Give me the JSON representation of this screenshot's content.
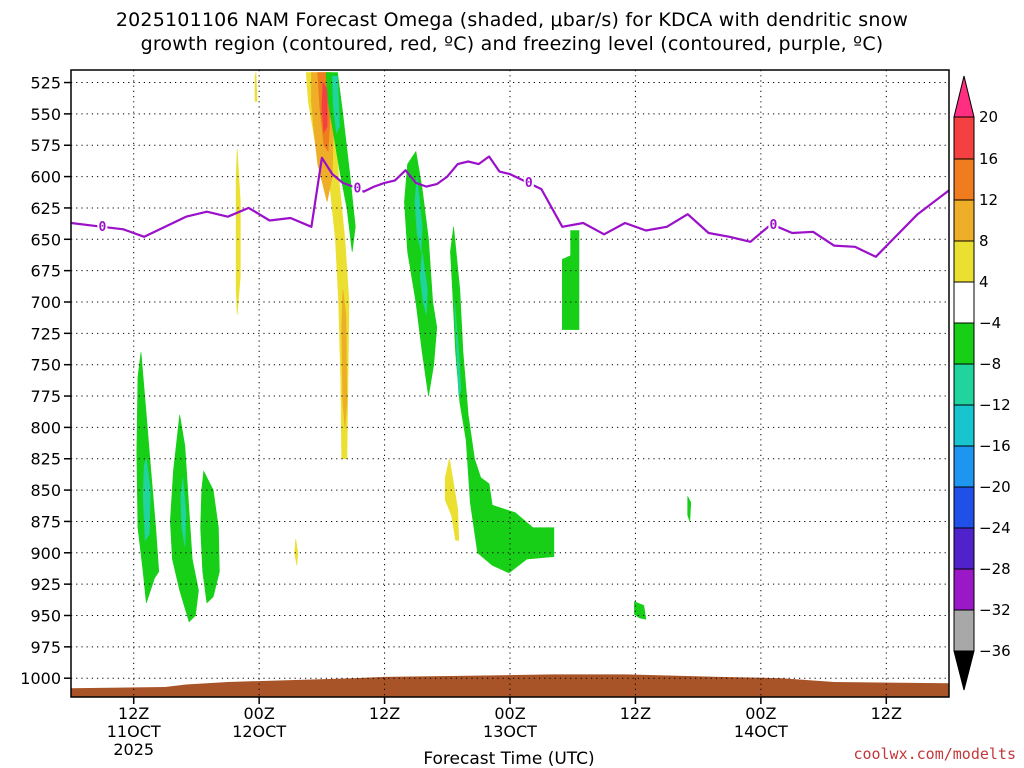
{
  "title": {
    "line1": "2025101106 NAM Forecast Omega (shaded, μbar/s) for KDCA with dendritic snow",
    "line2": "growth region (contoured, red, ºC) and freezing level (contoured, purple, ºC)"
  },
  "credit": "coolwx.com/modelts",
  "chart_data": {
    "type": "heatmap",
    "title": "2025101106 NAM Forecast Omega (shaded, μbar/s) for KDCA with dendritic snow growth region (contoured, red, ºC) and freezing level (contoured, purple, ºC)",
    "xlabel": "Forecast Time (UTC)",
    "ylabel": "",
    "x_unit": "forecast hour",
    "xlim": [
      0,
      84
    ],
    "x_ticks": [
      {
        "hour": 6,
        "lines": [
          "12Z",
          "11OCT",
          "2025"
        ]
      },
      {
        "hour": 18,
        "lines": [
          "00Z",
          "12OCT"
        ]
      },
      {
        "hour": 30,
        "lines": [
          "12Z"
        ]
      },
      {
        "hour": 42,
        "lines": [
          "00Z",
          "13OCT"
        ]
      },
      {
        "hour": 54,
        "lines": [
          "12Z"
        ]
      },
      {
        "hour": 66,
        "lines": [
          "00Z",
          "14OCT"
        ]
      },
      {
        "hour": 78,
        "lines": [
          "12Z"
        ]
      }
    ],
    "y_unit": "hPa",
    "ylim": [
      1015,
      515
    ],
    "y_ticks": [
      525,
      550,
      575,
      600,
      625,
      650,
      675,
      700,
      725,
      750,
      775,
      800,
      825,
      850,
      875,
      900,
      925,
      950,
      975,
      1000
    ],
    "grid": true,
    "colorbar": {
      "levels": [
        20,
        16,
        12,
        8,
        4,
        -4,
        -8,
        -12,
        -16,
        -20,
        -24,
        -28,
        -32,
        -36
      ],
      "colors": [
        "#ff2e80",
        "#f44040",
        "#ef7d20",
        "#eeae28",
        "#ebe032",
        "#ffffff",
        "#16cf16",
        "#21d39c",
        "#18c4cd",
        "#1e96f0",
        "#2050e8",
        "#5022cc",
        "#9a18c6",
        "#a8a8a8",
        "#000000"
      ],
      "placement": "right"
    },
    "shaded_regions": [
      {
        "class": "-8 to -4",
        "color": "#16cf16",
        "pts": [
          [
            6.7,
            740
          ],
          [
            7.2,
            790
          ],
          [
            7.6,
            830
          ],
          [
            8.1,
            880
          ],
          [
            8.4,
            915
          ],
          [
            8.0,
            920
          ],
          [
            7.2,
            940
          ],
          [
            6.9,
            915
          ],
          [
            6.4,
            880
          ],
          [
            6.3,
            820
          ],
          [
            6.4,
            760
          ]
        ]
      },
      {
        "class": "-12 to -8",
        "color": "#21d39c",
        "pts": [
          [
            7.2,
            825
          ],
          [
            7.6,
            850
          ],
          [
            7.5,
            885
          ],
          [
            7.1,
            890
          ],
          [
            6.9,
            855
          ],
          [
            7.0,
            830
          ]
        ]
      },
      {
        "class": "-8 to -4",
        "color": "#16cf16",
        "pts": [
          [
            10.4,
            790
          ],
          [
            10.9,
            815
          ],
          [
            11.2,
            855
          ],
          [
            11.6,
            905
          ],
          [
            12.2,
            930
          ],
          [
            11.9,
            950
          ],
          [
            11.3,
            955
          ],
          [
            10.4,
            930
          ],
          [
            9.7,
            905
          ],
          [
            9.5,
            875
          ],
          [
            9.8,
            835
          ]
        ]
      },
      {
        "class": "-12 to -8",
        "color": "#21d39c",
        "pts": [
          [
            10.7,
            840
          ],
          [
            11.0,
            870
          ],
          [
            10.9,
            895
          ],
          [
            10.6,
            880
          ],
          [
            10.5,
            855
          ]
        ]
      },
      {
        "class": "-8 to -4",
        "color": "#16cf16",
        "pts": [
          [
            12.7,
            835
          ],
          [
            13.6,
            850
          ],
          [
            14.1,
            880
          ],
          [
            14.2,
            915
          ],
          [
            13.6,
            935
          ],
          [
            13.0,
            940
          ],
          [
            12.6,
            915
          ],
          [
            12.4,
            880
          ],
          [
            12.5,
            850
          ]
        ]
      },
      {
        "class": "4 to 8",
        "color": "#ebe032",
        "pts": [
          [
            15.9,
            578
          ],
          [
            16.2,
            620
          ],
          [
            16.2,
            680
          ],
          [
            15.9,
            710
          ],
          [
            15.8,
            690
          ],
          [
            15.8,
            640
          ],
          [
            15.8,
            600
          ]
        ]
      },
      {
        "class": "4 to 8",
        "color": "#ebe032",
        "pts": [
          [
            17.7,
            517
          ],
          [
            17.8,
            540
          ],
          [
            17.6,
            540
          ],
          [
            17.6,
            520
          ]
        ]
      },
      {
        "class": "4 to 8",
        "color": "#ebe032",
        "pts": [
          [
            21.5,
            889
          ],
          [
            21.7,
            900
          ],
          [
            21.6,
            910
          ],
          [
            21.4,
            900
          ]
        ]
      },
      {
        "class": "4 to 8",
        "color": "#ebe032",
        "pts": [
          [
            22.5,
            517
          ],
          [
            25.0,
            517
          ],
          [
            25.3,
            560
          ],
          [
            25.6,
            600
          ],
          [
            26.2,
            650
          ],
          [
            26.6,
            700
          ],
          [
            26.5,
            760
          ],
          [
            26.4,
            825
          ],
          [
            25.9,
            825
          ],
          [
            25.8,
            760
          ],
          [
            25.6,
            700
          ],
          [
            25.3,
            650
          ],
          [
            24.8,
            610
          ],
          [
            23.7,
            590
          ],
          [
            23.1,
            560
          ],
          [
            22.7,
            540
          ]
        ]
      },
      {
        "class": "8 to 12",
        "color": "#eeae28",
        "pts": [
          [
            23.0,
            517
          ],
          [
            24.9,
            517
          ],
          [
            25.1,
            560
          ],
          [
            25.0,
            600
          ],
          [
            24.5,
            620
          ],
          [
            23.6,
            590
          ],
          [
            23.2,
            560
          ],
          [
            23.0,
            540
          ]
        ]
      },
      {
        "class": "8 to 12",
        "color": "#eeae28",
        "pts": [
          [
            26.0,
            690
          ],
          [
            26.3,
            710
          ],
          [
            26.4,
            780
          ],
          [
            26.2,
            800
          ],
          [
            26.0,
            780
          ],
          [
            25.9,
            720
          ]
        ]
      },
      {
        "class": "12 to 16",
        "color": "#ef7d20",
        "pts": [
          [
            23.6,
            517
          ],
          [
            24.7,
            517
          ],
          [
            24.8,
            550
          ],
          [
            24.6,
            580
          ],
          [
            24.2,
            575
          ],
          [
            23.8,
            545
          ]
        ]
      },
      {
        "class": "16 to 20",
        "color": "#f44040",
        "pts": [
          [
            24.1,
            525
          ],
          [
            24.5,
            530
          ],
          [
            24.5,
            560
          ],
          [
            24.2,
            565
          ],
          [
            24.0,
            545
          ]
        ]
      },
      {
        "class": "-8 to -4",
        "color": "#16cf16",
        "pts": [
          [
            24.4,
            517
          ],
          [
            25.5,
            517
          ],
          [
            26.0,
            550
          ],
          [
            26.7,
            600
          ],
          [
            27.2,
            640
          ],
          [
            26.9,
            660
          ],
          [
            26.4,
            625
          ],
          [
            25.7,
            595
          ],
          [
            25.0,
            560
          ],
          [
            24.6,
            540
          ]
        ]
      },
      {
        "class": "-12 to -8",
        "color": "#21d39c",
        "pts": [
          [
            25.0,
            520
          ],
          [
            25.5,
            520
          ],
          [
            25.7,
            560
          ],
          [
            25.4,
            565
          ],
          [
            25.1,
            545
          ]
        ]
      },
      {
        "class": "-8 to -4",
        "color": "#16cf16",
        "pts": [
          [
            33.0,
            580
          ],
          [
            33.6,
            610
          ],
          [
            34.2,
            650
          ],
          [
            34.6,
            700
          ],
          [
            35.0,
            720
          ],
          [
            34.7,
            750
          ],
          [
            34.2,
            775
          ],
          [
            33.6,
            740
          ],
          [
            33.0,
            700
          ],
          [
            32.2,
            660
          ],
          [
            31.9,
            620
          ],
          [
            32.2,
            590
          ]
        ]
      },
      {
        "class": "-12 to -8",
        "color": "#21d39c",
        "pts": [
          [
            33.1,
            600
          ],
          [
            33.6,
            640
          ],
          [
            33.5,
            660
          ],
          [
            33.1,
            645
          ],
          [
            32.9,
            620
          ]
        ]
      },
      {
        "class": "-12 to -8",
        "color": "#21d39c",
        "pts": [
          [
            33.6,
            660
          ],
          [
            34.1,
            690
          ],
          [
            34.0,
            710
          ],
          [
            33.7,
            700
          ],
          [
            33.4,
            680
          ]
        ]
      },
      {
        "class": "-8 to -4",
        "color": "#16cf16",
        "pts": [
          [
            36.6,
            640
          ],
          [
            37.2,
            690
          ],
          [
            37.5,
            740
          ],
          [
            38.0,
            790
          ],
          [
            38.6,
            825
          ],
          [
            39.2,
            840
          ],
          [
            40.0,
            845
          ],
          [
            40.3,
            862
          ],
          [
            42.5,
            868
          ],
          [
            44.2,
            880
          ],
          [
            46.2,
            880
          ],
          [
            46.2,
            903
          ],
          [
            43.6,
            905
          ],
          [
            41.9,
            916
          ],
          [
            40.3,
            910
          ],
          [
            38.9,
            900
          ],
          [
            38.2,
            860
          ],
          [
            37.8,
            810
          ],
          [
            37.2,
            780
          ],
          [
            36.8,
            740
          ],
          [
            36.5,
            690
          ],
          [
            36.3,
            660
          ]
        ]
      },
      {
        "class": "-12 to -8",
        "color": "#21d39c",
        "pts": [
          [
            36.7,
            700
          ],
          [
            37.1,
            740
          ],
          [
            37.3,
            770
          ],
          [
            37.1,
            775
          ],
          [
            36.9,
            740
          ]
        ]
      },
      {
        "class": "4 to 8",
        "color": "#ebe032",
        "pts": [
          [
            36.2,
            825
          ],
          [
            36.6,
            845
          ],
          [
            37.0,
            865
          ],
          [
            37.1,
            890
          ],
          [
            36.8,
            890
          ],
          [
            36.4,
            870
          ],
          [
            35.8,
            858
          ],
          [
            35.8,
            840
          ]
        ]
      },
      {
        "class": "-8 to -4",
        "color": "#16cf16",
        "pts": [
          [
            47.8,
            643
          ],
          [
            48.6,
            643
          ],
          [
            48.6,
            722
          ],
          [
            47.0,
            722
          ],
          [
            47.0,
            666
          ],
          [
            47.8,
            663
          ]
        ]
      },
      {
        "class": "-8 to -4",
        "color": "#16cf16",
        "pts": [
          [
            59.0,
            855
          ],
          [
            59.3,
            860
          ],
          [
            59.2,
            875
          ],
          [
            59.0,
            870
          ]
        ]
      },
      {
        "class": "-8 to -4",
        "color": "#16cf16",
        "pts": [
          [
            53.9,
            939
          ],
          [
            54.8,
            942
          ],
          [
            55.0,
            953
          ],
          [
            54.4,
            952
          ],
          [
            53.9,
            949
          ]
        ]
      }
    ],
    "freezing_level": {
      "label": "0",
      "label_hours": [
        3,
        27.4,
        43.8,
        67.2
      ],
      "x": [
        0,
        3,
        5,
        7,
        9,
        11,
        13,
        15,
        17,
        19,
        21,
        23,
        24,
        25,
        26,
        27,
        28,
        29,
        30,
        31,
        32,
        33,
        34,
        35,
        36,
        37,
        38,
        39,
        40,
        41,
        42,
        43,
        45,
        47,
        49,
        51,
        53,
        55,
        57,
        59,
        61,
        63,
        65,
        67,
        69,
        71,
        73,
        75,
        77,
        79,
        81,
        84
      ],
      "p": [
        637,
        640,
        642,
        648,
        640,
        632,
        628,
        632,
        625,
        635,
        633,
        640,
        585,
        598,
        605,
        608,
        612,
        608,
        605,
        603,
        595,
        605,
        608,
        606,
        600,
        590,
        588,
        590,
        584,
        596,
        598,
        602,
        610,
        640,
        637,
        646,
        637,
        643,
        640,
        630,
        645,
        648,
        652,
        638,
        645,
        644,
        655,
        656,
        664,
        647,
        630,
        611
      ]
    },
    "ground": {
      "color": "#a85428",
      "x": [
        0,
        9,
        11,
        13,
        15,
        27,
        30,
        38,
        46,
        53,
        58,
        62,
        68,
        73,
        84
      ],
      "p": [
        1008,
        1007,
        1005,
        1004,
        1003,
        1000,
        999,
        998,
        997,
        997,
        998,
        999,
        1000,
        1003,
        1004
      ]
    }
  }
}
